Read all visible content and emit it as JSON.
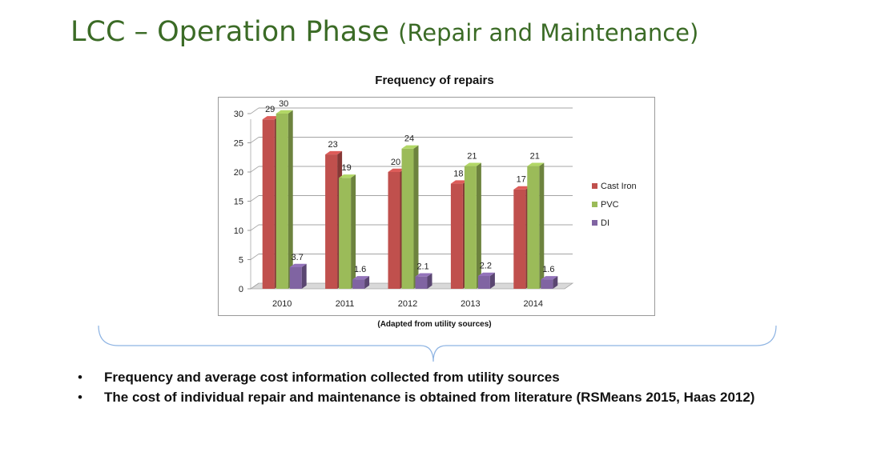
{
  "slide": {
    "title_main": "LCC – Operation Phase ",
    "title_sub": "(Repair and Maintenance)"
  },
  "source_note": "(Adapted from utility sources)",
  "bullets": [
    "Frequency and average cost information collected from utility sources",
    "The cost of individual repair and maintenance is obtained from literature (RSMeans 2015, Haas 2012)"
  ],
  "colors": {
    "title": "#3b6b26",
    "cast_iron": "#c0504d",
    "pvc": "#9bbb59",
    "di": "#8064a2",
    "brace": "#8eb4e3"
  },
  "chart_data": {
    "type": "bar",
    "title": "Frequency of repairs",
    "categories": [
      "2010",
      "2011",
      "2012",
      "2013",
      "2014"
    ],
    "series": [
      {
        "name": "Cast Iron",
        "values": [
          29,
          23,
          20,
          18,
          17
        ],
        "labels": [
          "29",
          "23",
          "20",
          "18",
          "17"
        ]
      },
      {
        "name": "PVC",
        "values": [
          30,
          19,
          24,
          21,
          21
        ],
        "labels": [
          "30",
          "19",
          "24",
          "21",
          "21"
        ]
      },
      {
        "name": "DI",
        "values": [
          3.7,
          1.6,
          2.1,
          2.2,
          1.6
        ],
        "labels": [
          "3.7",
          "1.6",
          "2.1",
          "2.2",
          "1.6"
        ]
      }
    ],
    "yticks": [
      "0",
      "5",
      "10",
      "15",
      "20",
      "25",
      "30"
    ],
    "ylim": [
      0,
      30
    ],
    "grid": true,
    "legend_position": "right",
    "style": "3d-clustered-column"
  }
}
